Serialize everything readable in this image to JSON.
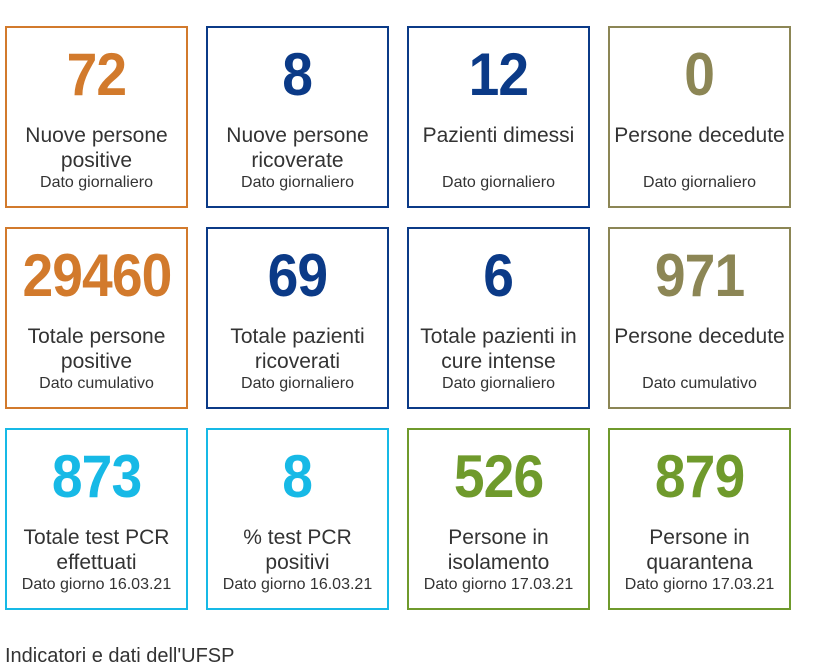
{
  "colors": {
    "orange": "#d27a2c",
    "navy": "#0b3a87",
    "olive": "#8c8655",
    "cyan": "#17b9e6",
    "green": "#6f9a2c"
  },
  "cards": [
    {
      "value": "72",
      "label": "Nuove persone positive",
      "sub": "Dato giornaliero",
      "color": "orange"
    },
    {
      "value": "8",
      "label": "Nuove persone ricoverate",
      "sub": "Dato giornaliero",
      "color": "navy"
    },
    {
      "value": "12",
      "label": "Pazienti dimessi",
      "sub": "Dato giornaliero",
      "color": "navy"
    },
    {
      "value": "0",
      "label": "Persone decedute",
      "sub": "Dato giornaliero",
      "color": "olive"
    },
    {
      "value": "29460",
      "label": "Totale persone positive",
      "sub": "Dato cumulativo",
      "color": "orange"
    },
    {
      "value": "69",
      "label": "Totale pazienti ricoverati",
      "sub": "Dato giornaliero",
      "color": "navy"
    },
    {
      "value": "6",
      "label": "Totale pazienti in cure intense",
      "sub": "Dato giornaliero",
      "color": "navy"
    },
    {
      "value": "971",
      "label": "Persone decedute",
      "sub": "Dato cumulativo",
      "color": "olive"
    },
    {
      "value": "873",
      "label": "Totale test PCR effettuati",
      "sub": "Dato giorno 16.03.21",
      "color": "cyan"
    },
    {
      "value": "8",
      "label": "% test PCR positivi",
      "sub": "Dato giorno 16.03.21",
      "color": "cyan"
    },
    {
      "value": "526",
      "label": "Persone in isolamento",
      "sub": "Dato giorno 17.03.21",
      "color": "green"
    },
    {
      "value": "879",
      "label": "Persone in quarantena",
      "sub": "Dato giorno 17.03.21",
      "color": "green"
    }
  ],
  "footer": {
    "text": "Indicatori e dati dell'UFSP"
  }
}
